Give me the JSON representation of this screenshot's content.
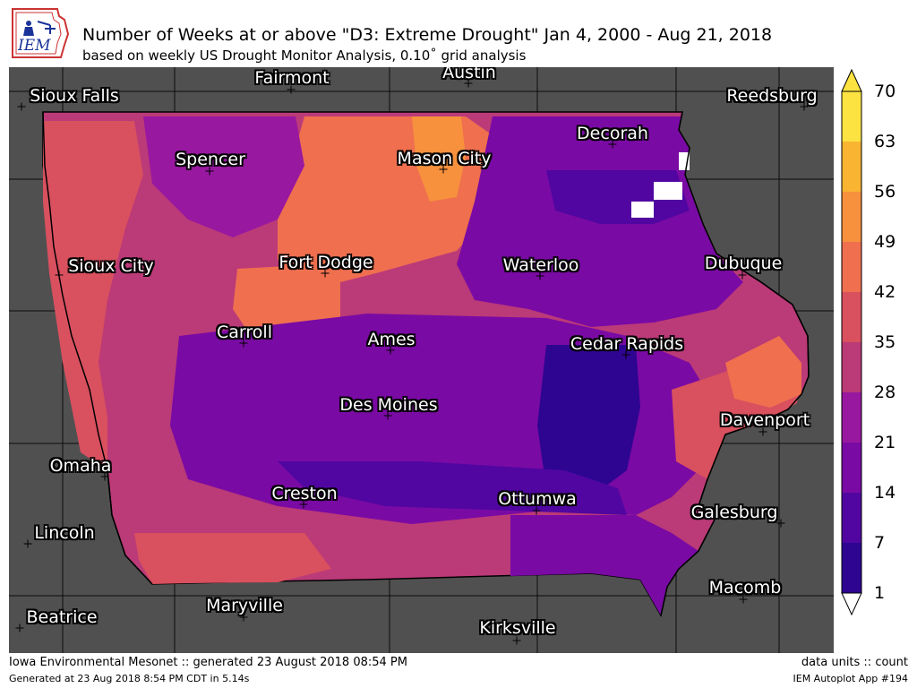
{
  "logo": {
    "text": "IEM"
  },
  "title": "Number of Weeks at or above \"D3: Extreme Drought\" Jan 4, 2000 - Aug 21, 2018",
  "subtitle": "based on weekly US Drought Monitor Analysis, 0.10˚ grid analysis",
  "cities": [
    {
      "name": "Sioux Falls"
    },
    {
      "name": "Fairmont"
    },
    {
      "name": "Austin"
    },
    {
      "name": "Reedsburg"
    },
    {
      "name": "Decorah"
    },
    {
      "name": "Spencer"
    },
    {
      "name": "Mason City"
    },
    {
      "name": "Sioux City"
    },
    {
      "name": "Fort Dodge"
    },
    {
      "name": "Waterloo"
    },
    {
      "name": "Dubuque"
    },
    {
      "name": "Carroll"
    },
    {
      "name": "Ames"
    },
    {
      "name": "Cedar Rapids"
    },
    {
      "name": "Des Moines"
    },
    {
      "name": "Davenport"
    },
    {
      "name": "Omaha"
    },
    {
      "name": "Creston"
    },
    {
      "name": "Ottumwa"
    },
    {
      "name": "Galesburg"
    },
    {
      "name": "Lincoln"
    },
    {
      "name": "Macomb"
    },
    {
      "name": "Maryville"
    },
    {
      "name": "Beatrice"
    },
    {
      "name": "Kirksville"
    }
  ],
  "colorbar": {
    "ticks": [
      "70",
      "63",
      "56",
      "49",
      "42",
      "35",
      "28",
      "21",
      "14",
      "7",
      "1"
    ],
    "colors": [
      "#fce342",
      "#f9b431",
      "#f7913d",
      "#ef6f4f",
      "#d9505f",
      "#bb3a78",
      "#9818a0",
      "#7a0aa4",
      "#5106a1",
      "#2e0591"
    ]
  },
  "footer": {
    "left": "Iowa Environmental Mesonet :: generated 23 August 2018 08:54 PM",
    "left_small": "Generated at 23 Aug 2018 8:54 PM CDT in 5.14s",
    "right": "data units :: count",
    "right_small": "IEM Autoplot App #194"
  }
}
